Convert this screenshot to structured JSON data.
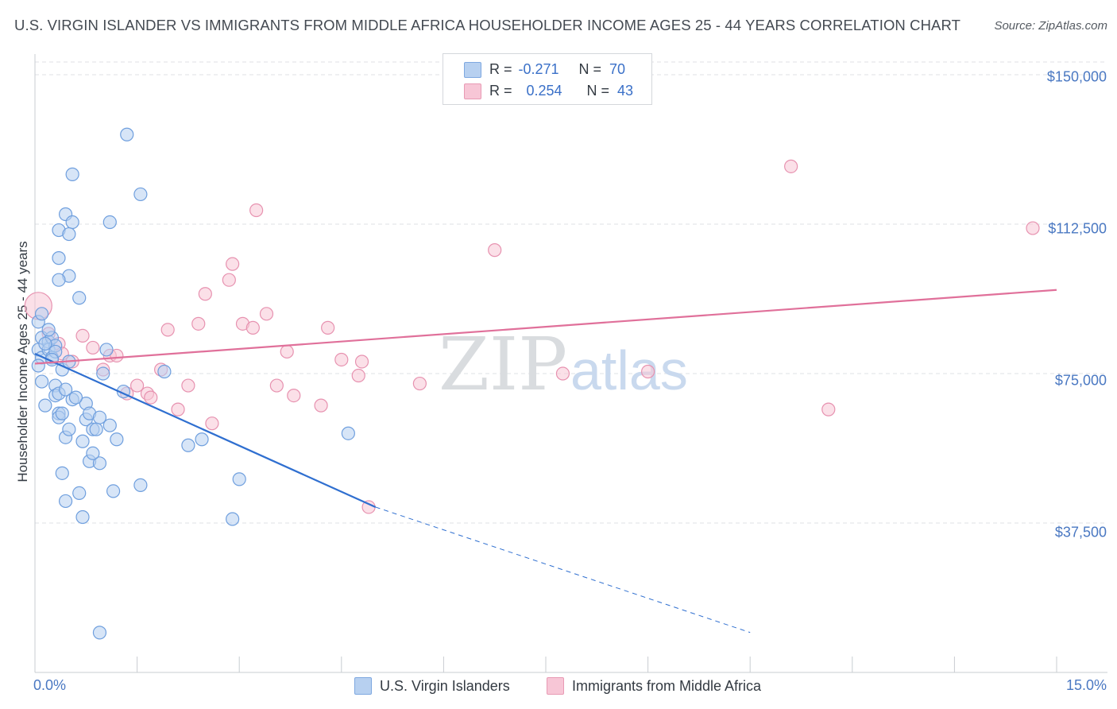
{
  "header": {
    "title": "U.S. VIRGIN ISLANDER VS IMMIGRANTS FROM MIDDLE AFRICA HOUSEHOLDER INCOME AGES 25 - 44 YEARS CORRELATION CHART",
    "source": "Source: ZipAtlas.com"
  },
  "legend": {
    "blue": {
      "r_label": "R =",
      "r_value": "-0.271",
      "n_label": "N =",
      "n_value": "70"
    },
    "pink": {
      "r_label": "R =",
      "r_value": "0.254",
      "n_label": "N =",
      "n_value": "43"
    }
  },
  "bottom_legend": {
    "blue_label": "U.S. Virgin Islanders",
    "pink_label": "Immigrants from Middle Africa"
  },
  "colors": {
    "blue_fill": "#b7d0f0",
    "blue_stroke": "#6f9fde",
    "blue_line": "#2f6fd0",
    "pink_fill": "#f7c6d6",
    "pink_stroke": "#e792b0",
    "pink_line": "#e0709a",
    "tick_text": "#4a78c2",
    "grid": "#dfe2e6"
  },
  "watermark": {
    "zip": "ZIP",
    "atlas": "atlas"
  },
  "chart_data": {
    "type": "scatter",
    "title": "U.S. VIRGIN ISLANDER VS IMMIGRANTS FROM MIDDLE AFRICA HOUSEHOLDER INCOME AGES 25 - 44 YEARS CORRELATION CHART",
    "xlabel": "",
    "ylabel": "Householder Income Ages 25 - 44 years",
    "xlim": [
      0,
      15
    ],
    "ylim": [
      0,
      153000
    ],
    "x_tick_labels": [
      "0.0%",
      "15.0%"
    ],
    "y_ticks": [
      37500,
      75000,
      112500,
      150000
    ],
    "y_tick_labels": [
      "$37,500",
      "$75,000",
      "$112,500",
      "$150,000"
    ],
    "grid": true,
    "series": [
      {
        "name": "U.S. Virgin Islanders",
        "color": "#6f9fde",
        "points": [
          [
            0.05,
            88000
          ],
          [
            0.1,
            84000
          ],
          [
            0.05,
            81000
          ],
          [
            0.1,
            79000
          ],
          [
            0.05,
            77000
          ],
          [
            0.1,
            73000
          ],
          [
            0.15,
            67000
          ],
          [
            0.2,
            83000
          ],
          [
            0.2,
            81000
          ],
          [
            0.25,
            84000
          ],
          [
            0.3,
            82000
          ],
          [
            0.25,
            79000
          ],
          [
            0.3,
            72000
          ],
          [
            0.3,
            69500
          ],
          [
            0.35,
            70000
          ],
          [
            0.35,
            65000
          ],
          [
            0.35,
            64000
          ],
          [
            0.4,
            76000
          ],
          [
            0.4,
            65000
          ],
          [
            0.45,
            59000
          ],
          [
            0.5,
            61000
          ],
          [
            0.5,
            78000
          ],
          [
            0.55,
            68500
          ],
          [
            0.55,
            125000
          ],
          [
            0.45,
            115000
          ],
          [
            0.55,
            113000
          ],
          [
            0.35,
            111000
          ],
          [
            0.5,
            110000
          ],
          [
            0.35,
            104000
          ],
          [
            0.5,
            99500
          ],
          [
            0.35,
            98500
          ],
          [
            0.65,
            94000
          ],
          [
            0.4,
            50000
          ],
          [
            0.45,
            43000
          ],
          [
            0.65,
            45000
          ],
          [
            0.7,
            39000
          ],
          [
            0.7,
            58000
          ],
          [
            0.75,
            67500
          ],
          [
            0.75,
            63500
          ],
          [
            0.8,
            65000
          ],
          [
            0.8,
            53000
          ],
          [
            0.85,
            61000
          ],
          [
            0.9,
            61000
          ],
          [
            0.95,
            52500
          ],
          [
            0.95,
            64000
          ],
          [
            1.0,
            75000
          ],
          [
            1.05,
            81000
          ],
          [
            1.1,
            62000
          ],
          [
            1.1,
            113000
          ],
          [
            1.15,
            45500
          ],
          [
            1.3,
            70500
          ],
          [
            1.35,
            135000
          ],
          [
            1.55,
            120000
          ],
          [
            1.55,
            47000
          ],
          [
            1.9,
            75500
          ],
          [
            2.25,
            57000
          ],
          [
            2.45,
            58500
          ],
          [
            2.9,
            38500
          ],
          [
            3.0,
            48500
          ],
          [
            4.6,
            60000
          ],
          [
            0.95,
            10000
          ],
          [
            0.1,
            90000
          ],
          [
            0.2,
            86000
          ],
          [
            0.3,
            80500
          ],
          [
            0.15,
            82500
          ],
          [
            0.25,
            78500
          ],
          [
            0.45,
            71000
          ],
          [
            0.6,
            69000
          ],
          [
            0.85,
            55000
          ],
          [
            1.2,
            58500
          ]
        ]
      },
      {
        "name": "Immigrants from Middle Africa",
        "color": "#e792b0",
        "points": [
          [
            0.05,
            92000
          ],
          [
            0.2,
            85000
          ],
          [
            0.35,
            82500
          ],
          [
            0.4,
            80000
          ],
          [
            0.55,
            78000
          ],
          [
            0.7,
            84500
          ],
          [
            0.85,
            81500
          ],
          [
            1.0,
            76000
          ],
          [
            1.1,
            79500
          ],
          [
            1.2,
            79500
          ],
          [
            1.35,
            70000
          ],
          [
            1.5,
            72000
          ],
          [
            1.65,
            70000
          ],
          [
            1.7,
            69000
          ],
          [
            1.85,
            76000
          ],
          [
            1.95,
            86000
          ],
          [
            2.1,
            66000
          ],
          [
            2.25,
            72000
          ],
          [
            2.4,
            87500
          ],
          [
            2.5,
            95000
          ],
          [
            2.6,
            62500
          ],
          [
            2.85,
            98500
          ],
          [
            2.9,
            102500
          ],
          [
            3.05,
            87500
          ],
          [
            3.2,
            86500
          ],
          [
            3.25,
            116000
          ],
          [
            3.4,
            90000
          ],
          [
            3.55,
            72000
          ],
          [
            3.7,
            80500
          ],
          [
            3.8,
            69500
          ],
          [
            4.2,
            67000
          ],
          [
            4.3,
            86500
          ],
          [
            4.5,
            78500
          ],
          [
            4.75,
            74500
          ],
          [
            4.8,
            78000
          ],
          [
            4.9,
            41500
          ],
          [
            5.65,
            72500
          ],
          [
            6.75,
            106000
          ],
          [
            7.75,
            75000
          ],
          [
            9.0,
            75500
          ],
          [
            11.1,
            127000
          ],
          [
            11.65,
            66000
          ],
          [
            14.65,
            111500
          ]
        ]
      }
    ],
    "trend_lines": [
      {
        "series": "U.S. Virgin Islanders",
        "x": [
          0.0,
          5.0
        ],
        "y": [
          80000,
          41500
        ],
        "extended_dashed_to": [
          14.0,
          -10000
        ]
      },
      {
        "series": "Immigrants from Middle Africa",
        "x": [
          0.0,
          15.0
        ],
        "y": [
          77500,
          96000
        ]
      }
    ]
  }
}
